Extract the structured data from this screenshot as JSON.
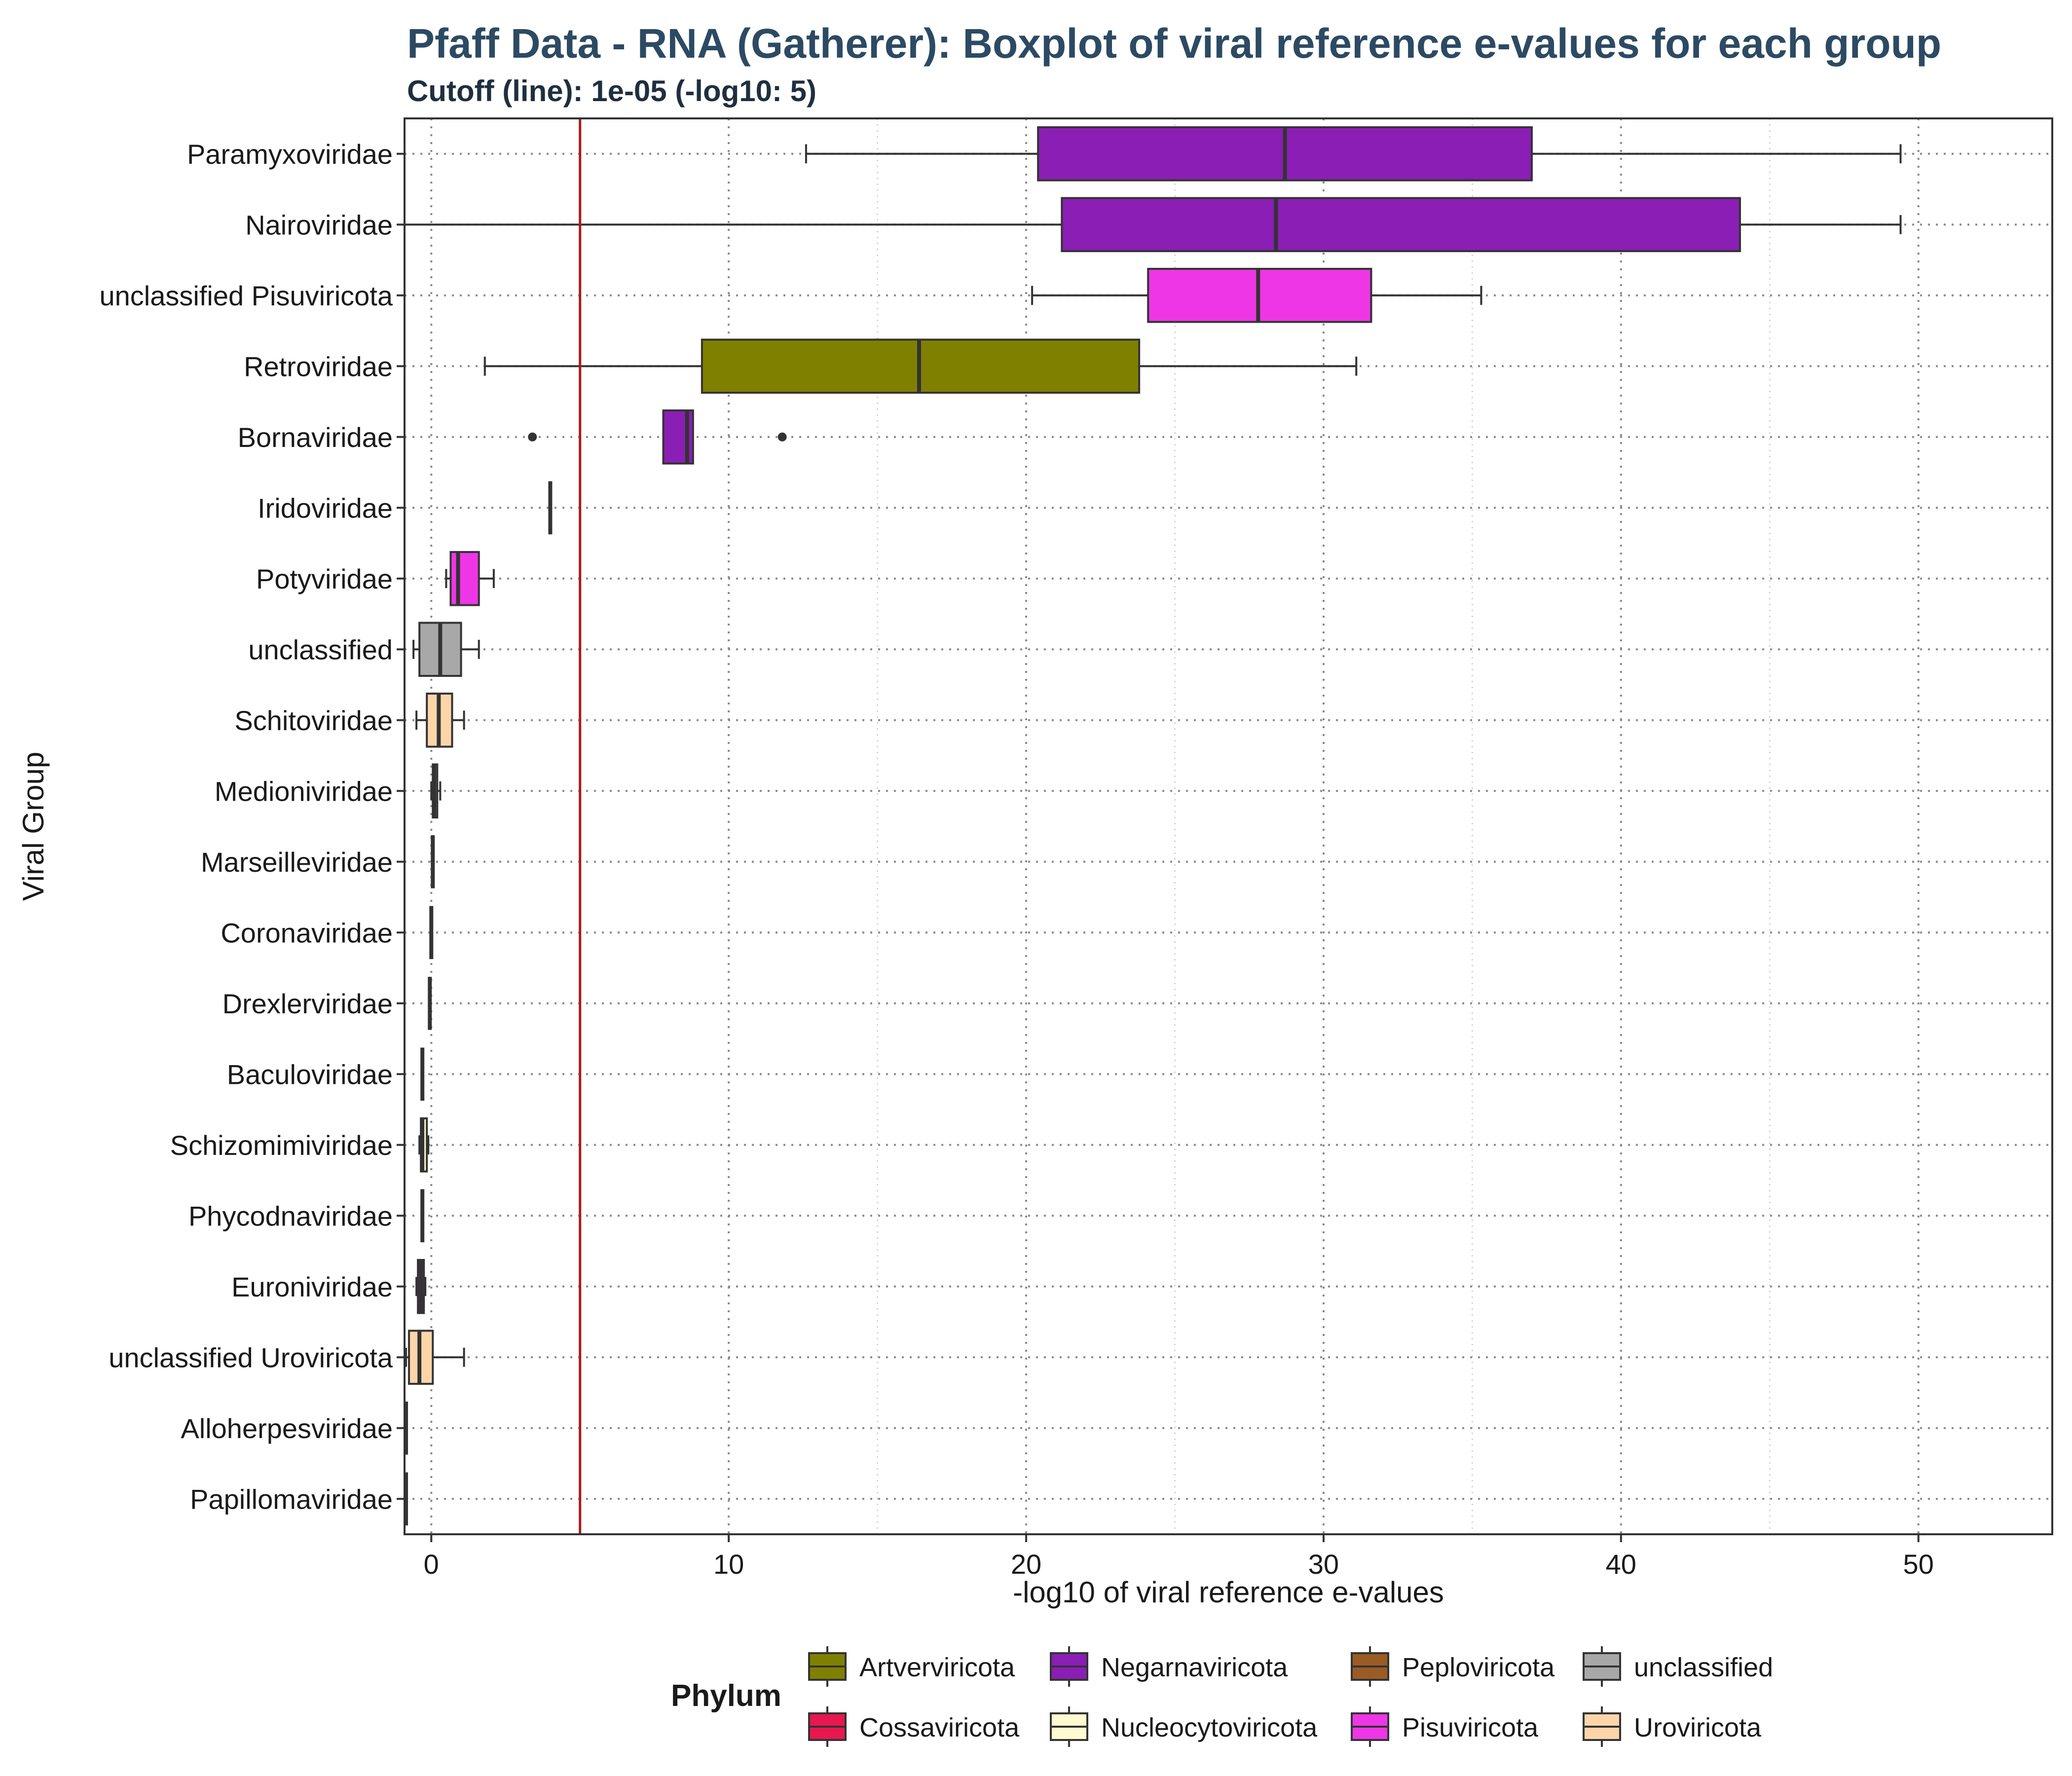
{
  "chart_data": {
    "type": "boxplot",
    "title": "Pfaff Data - RNA (Gatherer): Boxplot of viral reference e-values for each group",
    "subtitle": "Cutoff (line): 1e-05 (-log10: 5)",
    "xlabel": "-log10 of viral reference e-values",
    "ylabel": "Viral Group",
    "xlim": [
      -0.9,
      54.5
    ],
    "xticks": [
      0,
      10,
      20,
      30,
      40,
      50
    ],
    "xtick_labels": [
      "0",
      "10",
      "20",
      "30",
      "40",
      "50"
    ],
    "cutoff": 5,
    "cutoff_color": "#a31f1f",
    "grid": true,
    "legend": {
      "title": "Phylum",
      "position": "bottom",
      "items": [
        {
          "label": "Artverviricota",
          "color": "#808000"
        },
        {
          "label": "Cossaviricota",
          "color": "#e8174f"
        },
        {
          "label": "Negarnaviricota",
          "color": "#8b1eb5"
        },
        {
          "label": "Nucleocytoviricota",
          "color": "#fffbd0"
        },
        {
          "label": "Peploviricota",
          "color": "#9a5c24"
        },
        {
          "label": "Pisuviricota",
          "color": "#ef36e6"
        },
        {
          "label": "unclassified",
          "color": "#a8a8a8"
        },
        {
          "label": "Uroviricota",
          "color": "#fdd5a9"
        }
      ]
    },
    "groups": [
      {
        "name": "Paramyxoviridae",
        "phylum": "Negarnaviricota",
        "color": "#8b1eb5",
        "whisker_low": 12.6,
        "q1": 20.4,
        "median": 28.7,
        "q3": 37.0,
        "whisker_high": 49.4,
        "outliers": []
      },
      {
        "name": "Nairoviridae",
        "phylum": "Negarnaviricota",
        "color": "#8b1eb5",
        "whisker_low": -0.9,
        "q1": 21.2,
        "median": 28.4,
        "q3": 44.0,
        "whisker_high": 49.4,
        "outliers": []
      },
      {
        "name": "unclassified Pisuviricota",
        "phylum": "Pisuviricota",
        "color": "#ef36e6",
        "whisker_low": 20.2,
        "q1": 24.1,
        "median": 27.8,
        "q3": 31.6,
        "whisker_high": 35.3,
        "outliers": []
      },
      {
        "name": "Retroviridae",
        "phylum": "Artverviricota",
        "color": "#808000",
        "whisker_low": 1.8,
        "q1": 9.1,
        "median": 16.4,
        "q3": 23.8,
        "whisker_high": 31.1,
        "outliers": []
      },
      {
        "name": "Bornaviridae",
        "phylum": "Negarnaviricota",
        "color": "#8b1eb5",
        "whisker_low": 7.8,
        "q1": 7.8,
        "median": 8.6,
        "q3": 8.8,
        "whisker_high": 8.8,
        "outliers": [
          3.4,
          11.8
        ]
      },
      {
        "name": "Iridoviridae",
        "phylum": "Nucleocytoviricota",
        "color": "#fffbd0",
        "whisker_low": 4.0,
        "q1": 4.0,
        "median": 4.0,
        "q3": 4.0,
        "whisker_high": 4.0,
        "outliers": []
      },
      {
        "name": "Potyviridae",
        "phylum": "Pisuviricota",
        "color": "#ef36e6",
        "whisker_low": 0.5,
        "q1": 0.65,
        "median": 0.9,
        "q3": 1.6,
        "whisker_high": 2.1,
        "outliers": []
      },
      {
        "name": "unclassified",
        "phylum": "unclassified",
        "color": "#a8a8a8",
        "whisker_low": -0.6,
        "q1": -0.4,
        "median": 0.3,
        "q3": 1.0,
        "whisker_high": 1.6,
        "outliers": []
      },
      {
        "name": "Schitoviridae",
        "phylum": "Uroviricota",
        "color": "#fdd5a9",
        "whisker_low": -0.5,
        "q1": -0.15,
        "median": 0.25,
        "q3": 0.7,
        "whisker_high": 1.1,
        "outliers": []
      },
      {
        "name": "Medioniviridae",
        "phylum": "Nucleocytoviricota",
        "color": "#fffbd0",
        "whisker_low": 0.0,
        "q1": 0.05,
        "median": 0.1,
        "q3": 0.2,
        "whisker_high": 0.3,
        "outliers": []
      },
      {
        "name": "Marseilleviridae",
        "phylum": "Nucleocytoviricota",
        "color": "#fffbd0",
        "whisker_low": 0.05,
        "q1": 0.05,
        "median": 0.05,
        "q3": 0.05,
        "whisker_high": 0.05,
        "outliers": []
      },
      {
        "name": "Coronaviridae",
        "phylum": "Pisuviricota",
        "color": "#ef36e6",
        "whisker_low": 0.0,
        "q1": 0.0,
        "median": 0.0,
        "q3": 0.0,
        "whisker_high": 0.0,
        "outliers": []
      },
      {
        "name": "Drexlerviridae",
        "phylum": "Uroviricota",
        "color": "#fdd5a9",
        "whisker_low": -0.05,
        "q1": -0.05,
        "median": -0.05,
        "q3": -0.05,
        "whisker_high": -0.05,
        "outliers": []
      },
      {
        "name": "Baculoviridae",
        "phylum": "Peploviricota",
        "color": "#9a5c24",
        "whisker_low": -0.3,
        "q1": -0.3,
        "median": -0.3,
        "q3": -0.3,
        "whisker_high": -0.3,
        "outliers": []
      },
      {
        "name": "Schizomimiviridae",
        "phylum": "Nucleocytoviricota",
        "color": "#fffbd0",
        "whisker_low": -0.4,
        "q1": -0.35,
        "median": -0.3,
        "q3": -0.15,
        "whisker_high": -0.1,
        "outliers": []
      },
      {
        "name": "Phycodnaviridae",
        "phylum": "Nucleocytoviricota",
        "color": "#fffbd0",
        "whisker_low": -0.3,
        "q1": -0.3,
        "median": -0.3,
        "q3": -0.3,
        "whisker_high": -0.3,
        "outliers": []
      },
      {
        "name": "Euroniviridae",
        "phylum": "Pisuviricota",
        "color": "#ef36e6",
        "whisker_low": -0.5,
        "q1": -0.45,
        "median": -0.35,
        "q3": -0.25,
        "whisker_high": -0.2,
        "outliers": []
      },
      {
        "name": "unclassified Uroviricota",
        "phylum": "Uroviricota",
        "color": "#fdd5a9",
        "whisker_low": -0.85,
        "q1": -0.75,
        "median": -0.4,
        "q3": 0.05,
        "whisker_high": 1.1,
        "outliers": []
      },
      {
        "name": "Alloherpesviridae",
        "phylum": "Peploviricota",
        "color": "#9a5c24",
        "whisker_low": -0.85,
        "q1": -0.85,
        "median": -0.85,
        "q3": -0.85,
        "whisker_high": -0.85,
        "outliers": []
      },
      {
        "name": "Papillomaviridae",
        "phylum": "Cossaviricota",
        "color": "#e8174f",
        "whisker_low": -0.85,
        "q1": -0.85,
        "median": -0.85,
        "q3": -0.85,
        "whisker_high": -0.85,
        "outliers": []
      }
    ]
  }
}
